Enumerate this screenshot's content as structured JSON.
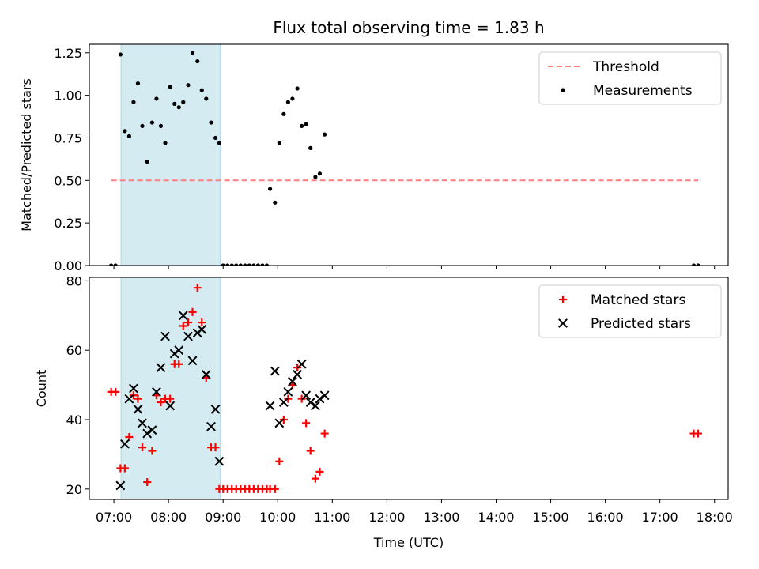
{
  "chart_data": {
    "title": "Flux total observing time = 1.83 h",
    "xlabel": "Time (UTC)",
    "x_ticks": [
      "07:00",
      "08:00",
      "09:00",
      "10:00",
      "11:00",
      "12:00",
      "13:00",
      "14:00",
      "15:00",
      "16:00",
      "17:00",
      "18:00"
    ],
    "xlim": [
      6.55,
      18.25
    ],
    "x_unit": "hours UTC",
    "shaded_span": {
      "from": 7.13,
      "to": 8.95,
      "color": "#add8e6"
    },
    "panels": [
      {
        "type": "scatter",
        "ylabel": "Matched/Predicted stars",
        "ylim": [
          0,
          1.3
        ],
        "y_ticks": [
          0.0,
          0.25,
          0.5,
          0.75,
          1.0,
          1.25
        ],
        "legend_position": "upper-right",
        "threshold": {
          "name": "Threshold",
          "value": 0.5,
          "x_range": [
            6.95,
            17.7
          ],
          "color": "#ff7f7f"
        },
        "series": [
          {
            "name": "Measurements",
            "color": "#000000",
            "marker": "dot",
            "points": [
              [
                6.95,
                0.0
              ],
              [
                7.03,
                0.0
              ],
              [
                7.12,
                1.24
              ],
              [
                7.2,
                0.79
              ],
              [
                7.28,
                0.76
              ],
              [
                7.36,
                0.96
              ],
              [
                7.44,
                1.07
              ],
              [
                7.52,
                0.82
              ],
              [
                7.61,
                0.61
              ],
              [
                7.7,
                0.84
              ],
              [
                7.78,
                0.98
              ],
              [
                7.86,
                0.82
              ],
              [
                7.94,
                0.72
              ],
              [
                8.03,
                1.05
              ],
              [
                8.11,
                0.95
              ],
              [
                8.19,
                0.93
              ],
              [
                8.27,
                0.96
              ],
              [
                8.36,
                1.06
              ],
              [
                8.44,
                1.25
              ],
              [
                8.53,
                1.2
              ],
              [
                8.61,
                1.03
              ],
              [
                8.69,
                0.98
              ],
              [
                8.78,
                0.84
              ],
              [
                8.86,
                0.75
              ],
              [
                8.93,
                0.72
              ],
              [
                9.0,
                0.0
              ],
              [
                9.08,
                0.0
              ],
              [
                9.16,
                0.0
              ],
              [
                9.24,
                0.0
              ],
              [
                9.32,
                0.0
              ],
              [
                9.4,
                0.0
              ],
              [
                9.48,
                0.0
              ],
              [
                9.56,
                0.0
              ],
              [
                9.64,
                0.0
              ],
              [
                9.72,
                0.0
              ],
              [
                9.8,
                0.0
              ],
              [
                9.86,
                0.45
              ],
              [
                9.95,
                0.37
              ],
              [
                10.03,
                0.72
              ],
              [
                10.11,
                0.89
              ],
              [
                10.19,
                0.96
              ],
              [
                10.27,
                0.98
              ],
              [
                10.36,
                1.04
              ],
              [
                10.44,
                0.82
              ],
              [
                10.52,
                0.83
              ],
              [
                10.6,
                0.69
              ],
              [
                10.69,
                0.52
              ],
              [
                10.77,
                0.54
              ],
              [
                10.86,
                0.77
              ],
              [
                17.62,
                0.0
              ],
              [
                17.7,
                0.0
              ]
            ]
          }
        ]
      },
      {
        "type": "scatter",
        "ylabel": "Count",
        "ylim": [
          17,
          81
        ],
        "y_ticks": [
          20,
          40,
          60,
          80
        ],
        "legend_position": "upper-right",
        "series": [
          {
            "name": "Matched stars",
            "color": "#ff0000",
            "marker": "plus",
            "points": [
              [
                6.95,
                48
              ],
              [
                7.03,
                48
              ],
              [
                7.12,
                26
              ],
              [
                7.2,
                26
              ],
              [
                7.28,
                35
              ],
              [
                7.36,
                47
              ],
              [
                7.44,
                46
              ],
              [
                7.52,
                32
              ],
              [
                7.61,
                22
              ],
              [
                7.7,
                31
              ],
              [
                7.78,
                47
              ],
              [
                7.86,
                45
              ],
              [
                7.94,
                46
              ],
              [
                8.03,
                46
              ],
              [
                8.11,
                56
              ],
              [
                8.19,
                56
              ],
              [
                8.27,
                67
              ],
              [
                8.36,
                68
              ],
              [
                8.44,
                71
              ],
              [
                8.53,
                78
              ],
              [
                8.61,
                68
              ],
              [
                8.69,
                52
              ],
              [
                8.78,
                32
              ],
              [
                8.86,
                32
              ],
              [
                8.93,
                20
              ],
              [
                9.0,
                20
              ],
              [
                9.08,
                20
              ],
              [
                9.16,
                20
              ],
              [
                9.24,
                20
              ],
              [
                9.32,
                20
              ],
              [
                9.4,
                20
              ],
              [
                9.48,
                20
              ],
              [
                9.56,
                20
              ],
              [
                9.64,
                20
              ],
              [
                9.72,
                20
              ],
              [
                9.8,
                20
              ],
              [
                9.86,
                20
              ],
              [
                9.95,
                20
              ],
              [
                10.03,
                28
              ],
              [
                10.11,
                40
              ],
              [
                10.19,
                46
              ],
              [
                10.27,
                50
              ],
              [
                10.36,
                55
              ],
              [
                10.44,
                46
              ],
              [
                10.52,
                39
              ],
              [
                10.6,
                31
              ],
              [
                10.69,
                23
              ],
              [
                10.77,
                25
              ],
              [
                10.86,
                36
              ],
              [
                17.62,
                36
              ],
              [
                17.7,
                36
              ]
            ]
          },
          {
            "name": "Predicted stars",
            "color": "#000000",
            "marker": "x",
            "points": [
              [
                7.12,
                21
              ],
              [
                7.2,
                33
              ],
              [
                7.28,
                46
              ],
              [
                7.36,
                49
              ],
              [
                7.44,
                43
              ],
              [
                7.52,
                39
              ],
              [
                7.61,
                36
              ],
              [
                7.7,
                37
              ],
              [
                7.78,
                48
              ],
              [
                7.86,
                55
              ],
              [
                7.94,
                64
              ],
              [
                8.03,
                44
              ],
              [
                8.11,
                59
              ],
              [
                8.19,
                60
              ],
              [
                8.27,
                70
              ],
              [
                8.36,
                64
              ],
              [
                8.44,
                57
              ],
              [
                8.53,
                65
              ],
              [
                8.61,
                66
              ],
              [
                8.69,
                53
              ],
              [
                8.78,
                38
              ],
              [
                8.86,
                43
              ],
              [
                8.93,
                28
              ],
              [
                9.86,
                44
              ],
              [
                9.95,
                54
              ],
              [
                10.03,
                39
              ],
              [
                10.11,
                45
              ],
              [
                10.19,
                48
              ],
              [
                10.27,
                51
              ],
              [
                10.36,
                53
              ],
              [
                10.44,
                56
              ],
              [
                10.52,
                47
              ],
              [
                10.6,
                45
              ],
              [
                10.69,
                44
              ],
              [
                10.77,
                46
              ],
              [
                10.86,
                47
              ]
            ]
          }
        ]
      }
    ]
  }
}
